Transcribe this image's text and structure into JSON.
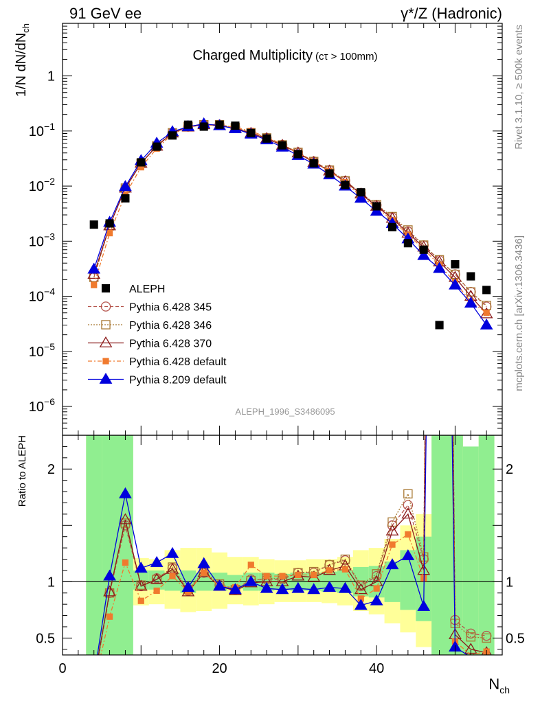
{
  "header": {
    "left": "91 GeV ee",
    "right": "γ*/Z (Hadronic)"
  },
  "chart_data": {
    "type": "scatter",
    "title": "Charged Multiplicity",
    "subtitle": "(cτ > 100mm)",
    "watermark": "ALEPH_1996_S3486095",
    "side_label_top": "Rivet 3.1.10, ≥ 500k events",
    "side_label_bottom": "mcplots.cern.ch [arXiv:1306.3436]",
    "main": {
      "ylabel": "1/N dN/dN",
      "ylabel_sub": "ch",
      "yscale": "log",
      "ylim": [
        3e-07,
        9
      ],
      "yticks": [
        {
          "v": 1e-06,
          "base": "10",
          "exp": "−6"
        },
        {
          "v": 1e-05,
          "base": "10",
          "exp": "−5"
        },
        {
          "v": 0.0001,
          "base": "10",
          "exp": "−4"
        },
        {
          "v": 0.001,
          "base": "10",
          "exp": "−3"
        },
        {
          "v": 0.01,
          "base": "10",
          "exp": "−2"
        },
        {
          "v": 0.1,
          "base": "10",
          "exp": "−1"
        },
        {
          "v": 1,
          "base": "1",
          "exp": ""
        }
      ]
    },
    "ratio": {
      "ylabel": "Ratio to ALEPH",
      "ylim": [
        0.35,
        2.3
      ],
      "yticks": [
        0.5,
        1,
        2
      ],
      "ytick_labels": [
        "0.5",
        "1",
        "2"
      ],
      "reference": 1
    },
    "xaxis": {
      "label": "N",
      "label_sub": "ch",
      "xlim": [
        0,
        56
      ],
      "ticks": [
        0,
        20,
        40
      ],
      "tick_labels": [
        "0",
        "20",
        "40"
      ]
    },
    "x": [
      4,
      6,
      8,
      10,
      12,
      14,
      16,
      18,
      20,
      22,
      24,
      26,
      28,
      30,
      32,
      34,
      36,
      38,
      40,
      42,
      44,
      46,
      48,
      50,
      52,
      54
    ],
    "data": {
      "name": "ALEPH",
      "color": "#000000",
      "values": [
        0.002,
        0.0021,
        0.006,
        0.027,
        0.052,
        0.083,
        0.13,
        0.12,
        0.13,
        0.125,
        0.092,
        0.073,
        0.055,
        0.038,
        0.026,
        0.017,
        0.0105,
        0.0077,
        0.0043,
        0.0018,
        0.00092,
        0.0007,
        3e-05,
        0.00038,
        0.00023,
        0.00013
      ]
    },
    "series": [
      {
        "name": "Pythia 6.428 345",
        "color": "#b5544c",
        "marker": "circle",
        "dash": "5,3",
        "values": [
          0.00022,
          0.0019,
          0.009,
          0.026,
          0.054,
          0.093,
          0.12,
          0.13,
          0.13,
          0.115,
          0.093,
          0.075,
          0.056,
          0.041,
          0.028,
          0.0195,
          0.0125,
          0.0074,
          0.0045,
          0.0027,
          0.0015,
          0.00084,
          0.00045,
          0.00025,
          0.00012,
          6.5e-05
        ]
      },
      {
        "name": "Pythia 6.428 346",
        "color": "#a87832",
        "marker": "square-open",
        "dash": "2,2",
        "values": [
          0.00022,
          0.0019,
          0.0092,
          0.026,
          0.054,
          0.093,
          0.12,
          0.13,
          0.13,
          0.115,
          0.093,
          0.075,
          0.056,
          0.041,
          0.028,
          0.0195,
          0.0125,
          0.0074,
          0.0046,
          0.0028,
          0.0016,
          0.00085,
          0.00046,
          0.00025,
          0.00012,
          6.8e-05
        ]
      },
      {
        "name": "Pythia 6.428 370",
        "color": "#8b1a1a",
        "marker": "triangle-open",
        "dash": "",
        "values": [
          0.00025,
          0.0019,
          0.0092,
          0.026,
          0.053,
          0.092,
          0.118,
          0.13,
          0.125,
          0.112,
          0.091,
          0.073,
          0.055,
          0.04,
          0.027,
          0.0188,
          0.012,
          0.0072,
          0.0043,
          0.0026,
          0.0014,
          0.00078,
          0.00042,
          0.00022,
          0.0001,
          4.8e-05
        ]
      },
      {
        "name": "Pythia 6.428 default",
        "color": "#f07a2e",
        "marker": "square-filled",
        "dash": "6,3,2,3",
        "values": [
          0.00016,
          0.0014,
          0.007,
          0.022,
          0.048,
          0.088,
          0.118,
          0.13,
          0.125,
          0.116,
          0.1,
          0.077,
          0.058,
          0.04,
          0.028,
          0.0188,
          0.0117,
          0.0065,
          0.0041,
          0.0024,
          0.0013,
          0.00072,
          0.00037,
          0.00018,
          8e-05,
          5e-05
        ]
      },
      {
        "name": "Pythia 8.209 default",
        "color": "#0000dd",
        "marker": "triangle-filled",
        "dash": "",
        "values": [
          0.00031,
          0.0022,
          0.0098,
          0.029,
          0.06,
          0.097,
          0.12,
          0.135,
          0.125,
          0.11,
          0.088,
          0.069,
          0.051,
          0.036,
          0.025,
          0.016,
          0.01,
          0.006,
          0.0035,
          0.0021,
          0.0011,
          0.00055,
          0.00032,
          0.00016,
          7.5e-05,
          3e-05
        ]
      }
    ],
    "ratio_series": [
      {
        "name": "Pythia 6.428 345",
        "values": [
          0.1,
          0.9,
          1.5,
          0.96,
          1.03,
          1.12,
          0.92,
          1.08,
          0.97,
          0.93,
          1.02,
          1.02,
          1.02,
          1.08,
          1.08,
          1.15,
          1.19,
          0.96,
          1.05,
          1.5,
          1.68,
          1.2,
          15,
          0.66,
          0.54,
          0.52
        ]
      },
      {
        "name": "Pythia 6.428 346",
        "values": [
          0.1,
          0.9,
          1.52,
          0.97,
          1.02,
          1.13,
          0.93,
          1.09,
          0.98,
          0.93,
          1.01,
          1.03,
          1.03,
          1.08,
          1.09,
          1.15,
          1.2,
          0.97,
          1.07,
          1.53,
          1.78,
          1.22,
          15.3,
          0.63,
          0.51,
          0.5
        ]
      },
      {
        "name": "Pythia 6.428 370",
        "values": [
          0.12,
          0.91,
          1.55,
          0.96,
          1.02,
          1.11,
          0.91,
          1.08,
          0.96,
          0.92,
          0.99,
          1.0,
          1.0,
          1.05,
          1.04,
          1.1,
          1.14,
          0.93,
          1.0,
          1.45,
          1.6,
          1.1,
          14,
          0.53,
          0.4,
          0.37
        ]
      },
      {
        "name": "Pythia 6.428 default",
        "values": [
          0.08,
          0.69,
          1.17,
          0.83,
          0.92,
          1.05,
          0.91,
          1.08,
          0.96,
          0.95,
          1.15,
          1.05,
          1.05,
          1.06,
          1.06,
          1.1,
          1.11,
          0.85,
          0.94,
          1.33,
          1.42,
          1.03,
          12,
          0.47,
          0.35,
          0.38
        ]
      },
      {
        "name": "Pythia 8.209 default",
        "values": [
          0.15,
          1.05,
          1.78,
          1.12,
          1.17,
          1.25,
          0.95,
          1.16,
          0.96,
          0.93,
          1.0,
          0.94,
          0.93,
          0.94,
          0.93,
          0.95,
          0.94,
          0.79,
          0.83,
          1.15,
          1.23,
          0.78,
          10.5,
          0.42,
          0.33,
          0.23
        ]
      }
    ],
    "bands": {
      "green": {
        "color": "#90ee90",
        "lo": [
          0,
          0.33,
          0.33,
          0.93,
          0.93,
          0.92,
          0.9,
          0.92,
          0.92,
          0.94,
          0.92,
          0.92,
          0.93,
          0.92,
          0.92,
          0.91,
          0.9,
          0.87,
          0.86,
          0.82,
          0.75,
          0.65,
          0,
          0,
          0,
          0
        ],
        "hi": [
          2.5,
          2.5,
          2.5,
          1.1,
          1.1,
          1.08,
          1.1,
          1.08,
          1.08,
          1.06,
          1.08,
          1.08,
          1.07,
          1.08,
          1.08,
          1.09,
          1.1,
          1.13,
          1.14,
          1.18,
          1.28,
          1.4,
          2.5,
          2.5,
          2.2,
          2.5
        ]
      },
      "yellow": {
        "color": "#ffff99",
        "lo": [
          0,
          0,
          0.6,
          0.79,
          0.8,
          0.76,
          0.73,
          0.74,
          0.76,
          0.8,
          0.79,
          0.8,
          0.82,
          0.82,
          0.82,
          0.81,
          0.79,
          0.74,
          0.71,
          0.63,
          0.55,
          0.42,
          0,
          0,
          0,
          0
        ],
        "hi": [
          2.5,
          2.5,
          2.5,
          1.21,
          1.2,
          1.28,
          1.3,
          1.3,
          1.26,
          1.22,
          1.22,
          1.2,
          1.19,
          1.19,
          1.2,
          1.2,
          1.22,
          1.28,
          1.3,
          1.38,
          1.5,
          1.6,
          2.5,
          2.5,
          2.1,
          2.5
        ]
      }
    }
  }
}
